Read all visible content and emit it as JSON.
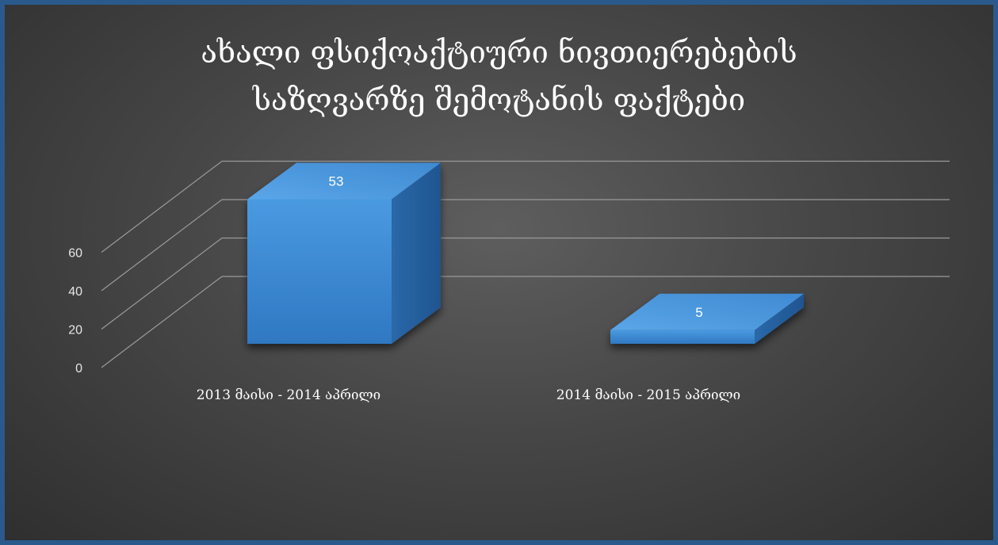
{
  "chart_data": {
    "type": "bar",
    "title_lines": [
      "ახალი ფსიქოაქტიური ნივთიერებების",
      "საზღვარზე შემოტანის ფაქტები"
    ],
    "categories": [
      "2013 მაისი - 2014 აპრილი",
      "2014 მაისი - 2015 აპრილი"
    ],
    "values": [
      53,
      5
    ],
    "data_labels": [
      "53",
      "5"
    ],
    "yticks": [
      "0",
      "20",
      "40",
      "60"
    ],
    "ylim": [
      0,
      60
    ],
    "grid": true,
    "legend": "none",
    "bar_color": "#3a86d0",
    "background_color": "#4a4a4a",
    "border_color": "#2a5a8c"
  }
}
